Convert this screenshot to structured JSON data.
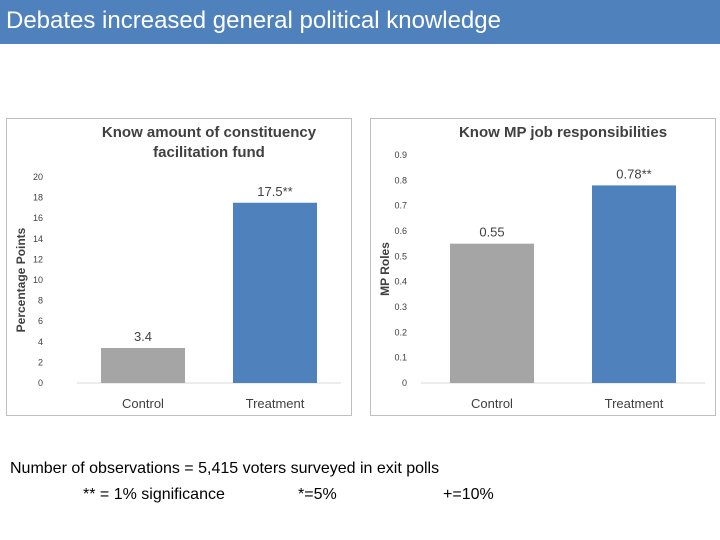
{
  "header": {
    "title": "Debates increased general political knowledge"
  },
  "chart_data": [
    {
      "type": "bar",
      "title_lines": [
        "Know amount of constituency",
        "facilitation fund"
      ],
      "ylabel": "Percentage Points",
      "categories": [
        "Control",
        "Treatment"
      ],
      "values": [
        3.4,
        17.5
      ],
      "data_labels": [
        "3.4",
        "17.5**"
      ],
      "bar_colors": [
        "#a5a5a5",
        "#4f81bd"
      ],
      "ylim": [
        0,
        20
      ],
      "yticks": [
        "0",
        "2",
        "4",
        "6",
        "8",
        "10",
        "12",
        "14",
        "16",
        "18",
        "20"
      ],
      "grid": false
    },
    {
      "type": "bar",
      "title_lines": [
        "Know MP job responsibilities"
      ],
      "ylabel": "MP Roles",
      "categories": [
        "Control",
        "Treatment"
      ],
      "values": [
        0.55,
        0.78
      ],
      "data_labels": [
        "0.55",
        "0.78**"
      ],
      "bar_colors": [
        "#a5a5a5",
        "#4f81bd"
      ],
      "ylim": [
        0,
        0.9
      ],
      "yticks": [
        "0",
        "0.1",
        "0.2",
        "0.3",
        "0.4",
        "0.5",
        "0.6",
        "0.7",
        "0.8",
        "0.9"
      ],
      "grid": false
    }
  ],
  "notes": {
    "observations": "Number of observations = 5,415 voters surveyed in exit polls",
    "sig1": "** = 1% significance",
    "sig5": "*=5%",
    "sig10": "+=10%"
  }
}
